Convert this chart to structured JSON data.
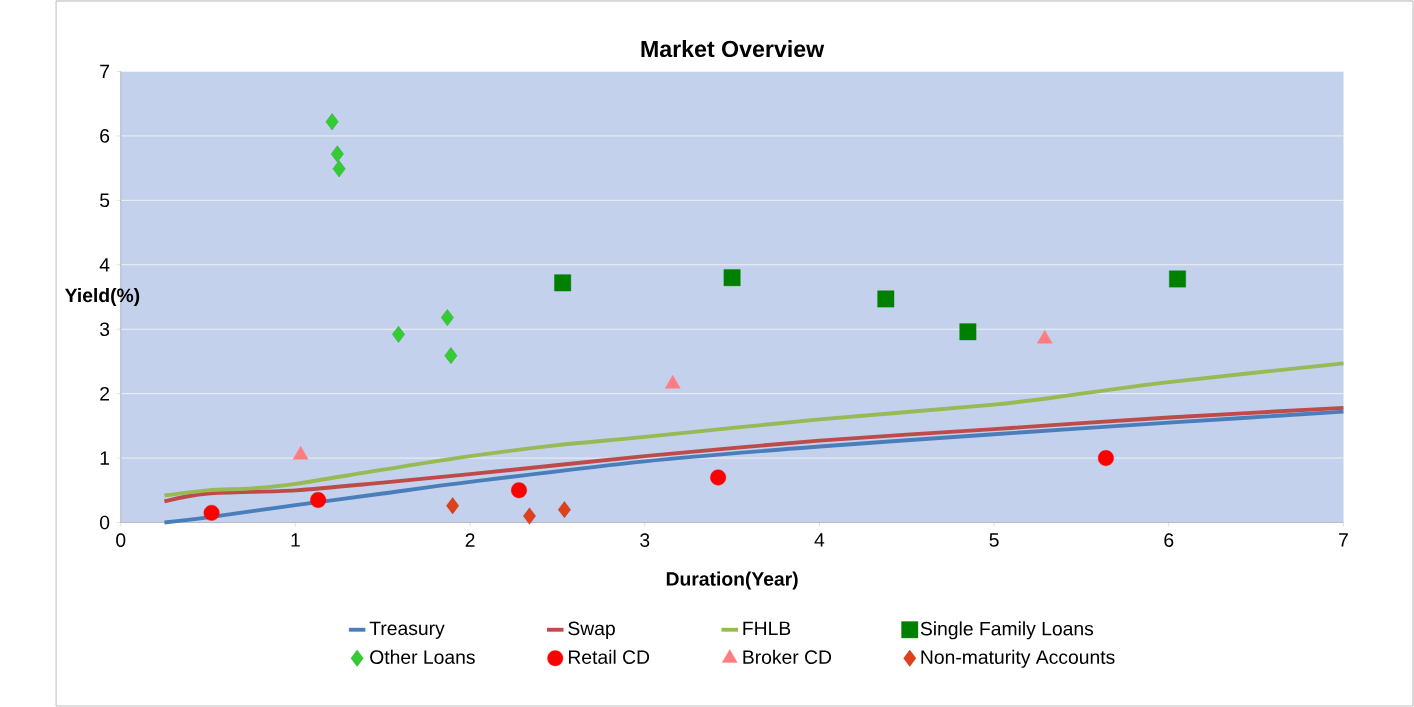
{
  "chart_data": {
    "type": "line",
    "title": "Market Overview",
    "xlabel": "Duration(Year)",
    "ylabel": "Yield(%)",
    "xlim": [
      0,
      7
    ],
    "ylim": [
      0,
      7
    ],
    "xticks": [
      0,
      1,
      2,
      3,
      4,
      5,
      6,
      7
    ],
    "yticks": [
      0,
      1,
      2,
      3,
      4,
      5,
      6,
      7
    ],
    "grid": "y",
    "legend": "bottom",
    "series": [
      {
        "name": "Treasury",
        "color": "#4a7ebb",
        "marker": "none",
        "line_style": "solid",
        "x": [
          0.25,
          0.5,
          1,
          1.5,
          2,
          3,
          4,
          5,
          6,
          7
        ],
        "values": [
          0,
          0.08,
          0.27,
          0.45,
          0.63,
          0.95,
          1.18,
          1.37,
          1.55,
          1.72
        ]
      },
      {
        "name": "Swap",
        "color": "#be4b48",
        "marker": "none",
        "line_style": "solid",
        "x": [
          0.25,
          0.5,
          1,
          1.5,
          2,
          3,
          4,
          5,
          6,
          7
        ],
        "values": [
          0.33,
          0.45,
          0.5,
          0.62,
          0.75,
          1.03,
          1.27,
          1.45,
          1.63,
          1.78
        ]
      },
      {
        "name": "FHLB",
        "color": "#98b954",
        "marker": "none",
        "line_style": "solid",
        "x": [
          0.25,
          0.5,
          0.75,
          1,
          1.5,
          2,
          2.5,
          3,
          4,
          5,
          5.5,
          6,
          7
        ],
        "values": [
          0.42,
          0.5,
          0.53,
          0.6,
          0.82,
          1.03,
          1.2,
          1.33,
          1.6,
          1.83,
          2.0,
          2.18,
          2.47
        ]
      },
      {
        "name": "Single Family Loans",
        "type": "scatter",
        "color": "#008000",
        "marker": "square",
        "x": [
          2.53,
          3.5,
          4.38,
          4.85,
          6.05
        ],
        "values": [
          3.72,
          3.8,
          3.47,
          2.96,
          3.78
        ]
      },
      {
        "name": "Other Loans",
        "type": "scatter",
        "color": "#33cc33",
        "marker": "diamond",
        "x": [
          1.21,
          1.24,
          1.25,
          1.59,
          1.87,
          1.89
        ],
        "values": [
          6.22,
          5.72,
          5.49,
          2.92,
          3.18,
          2.59
        ]
      },
      {
        "name": "Retail CD",
        "type": "scatter",
        "color": "#ff0000",
        "marker": "circle",
        "x": [
          0.52,
          1.13,
          2.28,
          3.42,
          5.64
        ],
        "values": [
          0.15,
          0.35,
          0.5,
          0.7,
          1.0
        ]
      },
      {
        "name": "Broker CD",
        "type": "scatter",
        "color": "#ff7c80",
        "marker": "triangle",
        "x": [
          1.03,
          3.16,
          5.29
        ],
        "values": [
          1.05,
          2.15,
          2.85
        ]
      },
      {
        "name": "Non-maturity Accounts",
        "type": "scatter",
        "color": "#e0401a",
        "marker": "diamond",
        "x": [
          1.9,
          2.34,
          2.54
        ],
        "values": [
          0.26,
          0.1,
          0.2
        ]
      }
    ]
  }
}
